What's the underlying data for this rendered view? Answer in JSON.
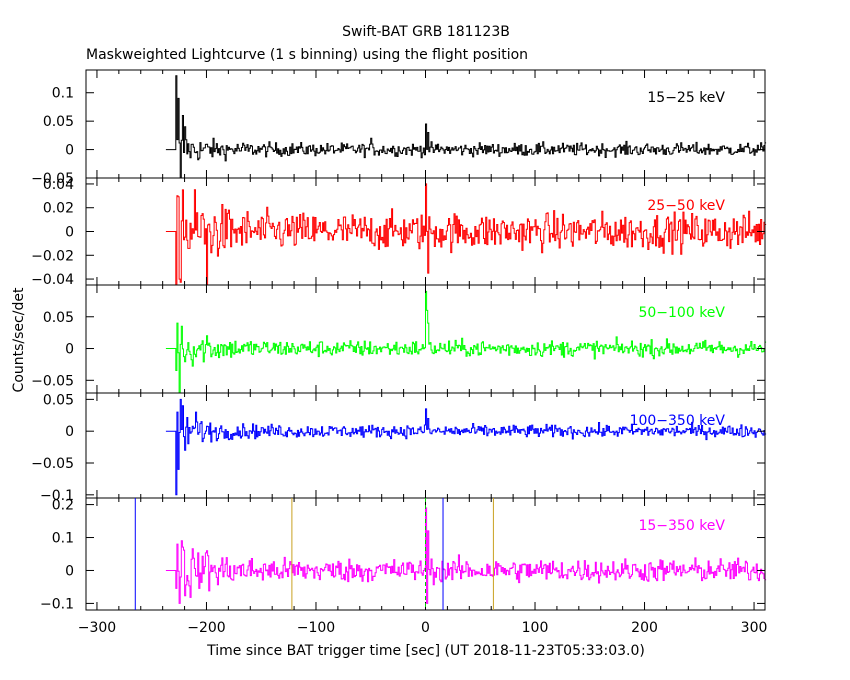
{
  "title": "Swift-BAT GRB 181123B",
  "subtitle": "Maskweighted Lightcurve (1 s binning) using the flight position",
  "chart_data": {
    "type": "line",
    "title": "Swift-BAT GRB 181123B",
    "subtitle": "Maskweighted Lightcurve (1 s binning) using the flight position",
    "xlabel": "Time since BAT trigger time [sec] (UT 2018-11-23T05:33:03.0)",
    "ylabel": "Counts/sec/det",
    "xlim": [
      -310,
      310
    ],
    "x_ticks": [
      -300,
      -200,
      -100,
      0,
      100,
      200,
      300
    ],
    "x_tick_labels": [
      "−300",
      "−200",
      "−100",
      "0",
      "100",
      "200",
      "300"
    ],
    "data_start": -228,
    "data_end": 310,
    "panels": [
      {
        "label": "15−25 keV",
        "color": "#000000",
        "ylim": [
          -0.05,
          0.14
        ],
        "y_ticks": [
          -0.05,
          0,
          0.05,
          0.1
        ],
        "y_tick_labels": [
          "−0.05",
          "0",
          "0.05",
          "0.1"
        ],
        "noise": 0.008,
        "spikes": [
          [
            -228,
            0.13
          ],
          [
            -226,
            0.09
          ],
          [
            -224,
            -0.05
          ],
          [
            -222,
            0.06
          ],
          [
            -220,
            0.04
          ],
          [
            -50,
            0.02
          ],
          [
            0,
            0.045
          ],
          [
            2,
            0.03
          ]
        ]
      },
      {
        "label": "25−50 keV",
        "color": "#ff0000",
        "ylim": [
          -0.045,
          0.045
        ],
        "y_ticks": [
          -0.04,
          -0.02,
          0,
          0.02,
          0.04
        ],
        "y_tick_labels": [
          "−0.04",
          "−0.02",
          "0",
          "0.02",
          "0.04"
        ],
        "noise": 0.011,
        "spikes": [
          [
            -227,
            0.03
          ],
          [
            -225,
            -0.04
          ],
          [
            -222,
            0.035
          ],
          [
            -200,
            -0.045
          ],
          [
            0,
            0.04
          ],
          [
            2,
            -0.035
          ]
        ]
      },
      {
        "label": "50−100 keV",
        "color": "#00ff00",
        "ylim": [
          -0.07,
          0.1
        ],
        "y_ticks": [
          -0.05,
          0,
          0.05
        ],
        "y_tick_labels": [
          "−0.05",
          "0",
          "0.05"
        ],
        "noise": 0.009,
        "spikes": [
          [
            -227,
            0.04
          ],
          [
            -225,
            -0.07
          ],
          [
            -223,
            0.035
          ],
          [
            -200,
            0.02
          ],
          [
            0,
            0.09
          ],
          [
            1,
            0.06
          ],
          [
            2,
            0.04
          ]
        ]
      },
      {
        "label": "100−350 keV",
        "color": "#0000ff",
        "ylim": [
          -0.105,
          0.06
        ],
        "y_ticks": [
          -0.1,
          -0.05,
          0,
          0.05
        ],
        "y_tick_labels": [
          "−0.1",
          "−0.05",
          "0",
          "0.05"
        ],
        "noise": 0.007,
        "spikes": [
          [
            -228,
            -0.1
          ],
          [
            -226,
            -0.06
          ],
          [
            -224,
            0.05
          ],
          [
            -222,
            0.04
          ],
          [
            -220,
            -0.03
          ],
          [
            -210,
            0.03
          ],
          [
            0,
            0.035
          ],
          [
            2,
            0.02
          ]
        ]
      },
      {
        "label": "15−350 keV",
        "color": "#ff00ff",
        "ylim": [
          -0.12,
          0.22
        ],
        "y_ticks": [
          -0.1,
          0,
          0.1,
          0.2
        ],
        "y_tick_labels": [
          "−0.1",
          "0",
          "0.1",
          "0.2"
        ],
        "noise": 0.025,
        "spikes": [
          [
            -227,
            0.08
          ],
          [
            -225,
            -0.1
          ],
          [
            -223,
            0.09
          ],
          [
            -200,
            0.06
          ],
          [
            0,
            0.19
          ],
          [
            1,
            -0.1
          ],
          [
            2,
            0.12
          ]
        ]
      }
    ],
    "markers": [
      {
        "x": -265,
        "color": "#0000ff"
      },
      {
        "x": -122,
        "color": "#c8a020"
      },
      {
        "x": 16,
        "color": "#0000ff"
      },
      {
        "x": 62,
        "color": "#c8a020"
      },
      {
        "x": 0,
        "color": "#00cc00"
      }
    ]
  }
}
